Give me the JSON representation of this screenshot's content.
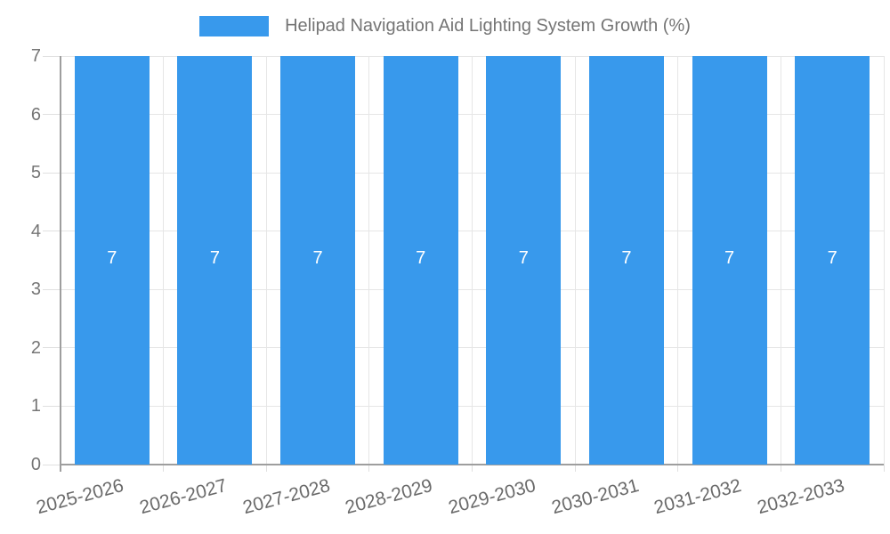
{
  "legend": {
    "label": "Helipad Navigation Aid Lighting System Growth (%)"
  },
  "colors": {
    "bar": "#3899ec",
    "grid": "#e6e6e6",
    "tick": "#e0e0e0",
    "axis": "#9e9e9e",
    "axis_text": "#757575",
    "x_axis_text": "#6a6a6a",
    "value_label": "#ffffff",
    "background": "#ffffff"
  },
  "chart_data": {
    "type": "bar",
    "title": "Helipad Navigation Aid Lighting System Growth (%)",
    "categories": [
      "2025-2026",
      "2026-2027",
      "2027-2028",
      "2028-2029",
      "2029-2030",
      "2030-2031",
      "2031-2032",
      "2032-2033"
    ],
    "values": [
      7,
      7,
      7,
      7,
      7,
      7,
      7,
      7
    ],
    "value_labels": [
      "7",
      "7",
      "7",
      "7",
      "7",
      "7",
      "7",
      "7"
    ],
    "xlabel": "",
    "ylabel": "",
    "ylim": [
      0,
      7
    ],
    "yticks": [
      0,
      1,
      2,
      3,
      4,
      5,
      6,
      7
    ],
    "grid": true,
    "legend_position": "top",
    "x_tick_rotation": -15,
    "bar_labels_inside": true
  }
}
